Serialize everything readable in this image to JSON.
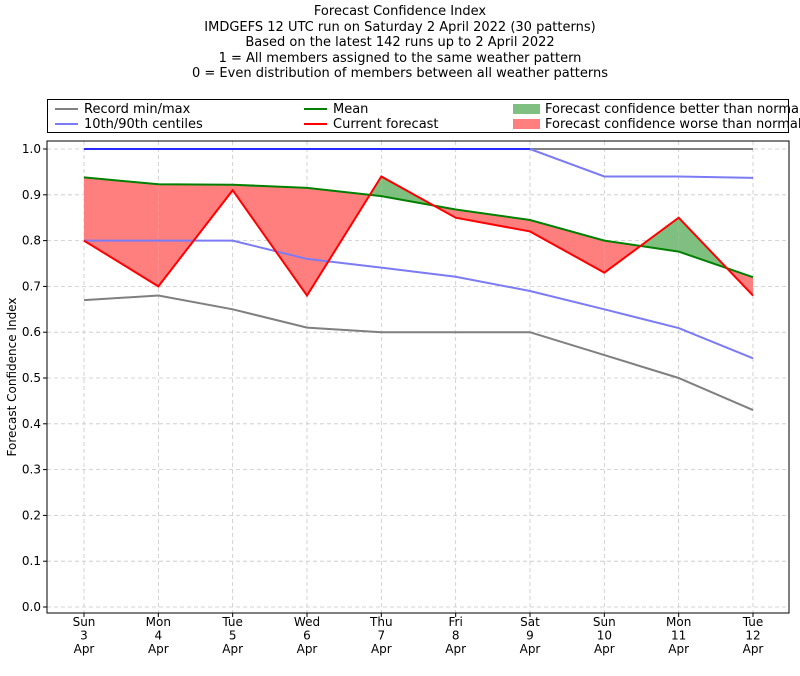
{
  "title_lines": [
    "Forecast Confidence Index",
    "IMDGEFS 12 UTC run on Saturday 2 April 2022 (30 patterns)",
    "Based on the latest 142 runs up to 2 April 2022",
    "1 = All members assigned to the same weather pattern",
    "0 = Even distribution of members between all weather patterns"
  ],
  "legend": {
    "record": "Record min/max",
    "centiles": "10th/90th centiles",
    "mean": "Mean",
    "current": "Current forecast",
    "better": "Forecast confidence better than normal",
    "worse": "Forecast confidence worse than normal"
  },
  "colors": {
    "record": "#7f7f7f",
    "centiles": "#7b7bf5",
    "max_top": "#2a2aff",
    "mean": "#008000",
    "current": "#ff0000",
    "better": "#7fbf7f",
    "worse": "#ff7f7f"
  },
  "chart_data": {
    "type": "line",
    "ylabel": "Forecast Confidence Index",
    "ylim": [
      0,
      1
    ],
    "yticks": [
      "0.0",
      "0.1",
      "0.2",
      "0.3",
      "0.4",
      "0.5",
      "0.6",
      "0.7",
      "0.8",
      "0.9",
      "1.0"
    ],
    "categories": [
      [
        "Sun",
        "3",
        "Apr"
      ],
      [
        "Mon",
        "4",
        "Apr"
      ],
      [
        "Tue",
        "5",
        "Apr"
      ],
      [
        "Wed",
        "6",
        "Apr"
      ],
      [
        "Thu",
        "7",
        "Apr"
      ],
      [
        "Fri",
        "8",
        "Apr"
      ],
      [
        "Sat",
        "9",
        "Apr"
      ],
      [
        "Sun",
        "10",
        "Apr"
      ],
      [
        "Mon",
        "11",
        "Apr"
      ],
      [
        "Tue",
        "12",
        "Apr"
      ]
    ],
    "grid": true,
    "series": [
      {
        "name": "Record min/max",
        "key": "record_max",
        "values": [
          1.0,
          1.0,
          1.0,
          1.0,
          1.0,
          1.0,
          1.0,
          1.0,
          1.0,
          1.0
        ]
      },
      {
        "name": "Record min/max",
        "key": "record_min",
        "values": [
          0.67,
          0.68,
          0.65,
          0.61,
          0.6,
          0.6,
          0.6,
          0.55,
          0.5,
          0.43
        ]
      },
      {
        "name": "10th/90th centiles",
        "key": "centile_90",
        "values": [
          1.0,
          1.0,
          1.0,
          1.0,
          1.0,
          1.0,
          1.0,
          0.94,
          0.94,
          0.937
        ]
      },
      {
        "name": "10th/90th centiles",
        "key": "centile_10",
        "values": [
          0.8,
          0.8,
          0.8,
          0.76,
          0.741,
          0.721,
          0.69,
          0.65,
          0.609,
          0.543
        ]
      },
      {
        "name": "Mean",
        "key": "mean",
        "values": [
          0.938,
          0.923,
          0.922,
          0.915,
          0.897,
          0.868,
          0.845,
          0.8,
          0.776,
          0.72
        ]
      },
      {
        "name": "Current forecast",
        "key": "current",
        "values": [
          0.8,
          0.7,
          0.91,
          0.68,
          0.94,
          0.85,
          0.82,
          0.73,
          0.85,
          0.68
        ]
      }
    ]
  }
}
